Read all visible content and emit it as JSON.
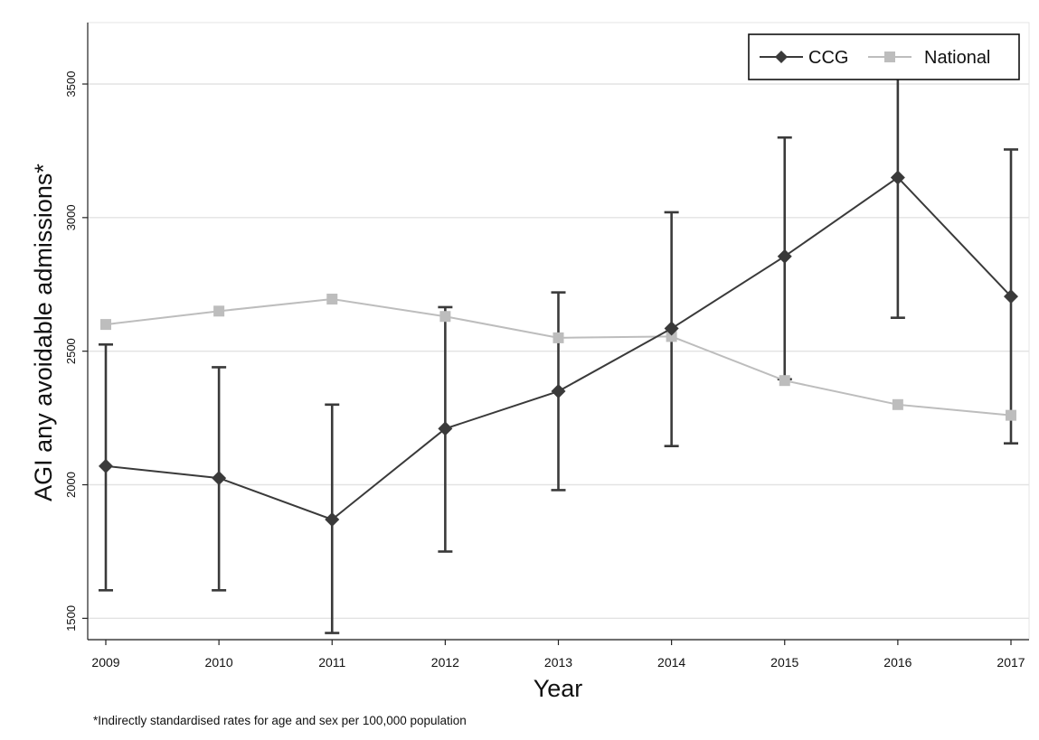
{
  "chart_data": {
    "type": "line",
    "xlabel": "Year",
    "ylabel": "AGI any avoidable admissions*",
    "footnote": "*Indirectly standardised rates for age and sex per 100,000 population",
    "x": [
      "2009",
      "2010",
      "2011",
      "2012",
      "2013",
      "2014",
      "2015",
      "2016",
      "2017"
    ],
    "yticks": [
      1500,
      2000,
      2500,
      3000,
      3500
    ],
    "xlim": [
      2009,
      2017
    ],
    "ylim": [
      1420,
      3730
    ],
    "grid": "horizontal",
    "legend_position": "top-right",
    "series": [
      {
        "name": "CCG",
        "marker": "diamond",
        "color": "#3a3a3a",
        "values": [
          2070,
          2025,
          1870,
          2210,
          2350,
          2585,
          2855,
          3150,
          2705
        ],
        "ci_lower": [
          1605,
          1605,
          1445,
          1750,
          1980,
          2145,
          2395,
          2625,
          2155
        ],
        "ci_upper": [
          2525,
          2440,
          2300,
          2665,
          2720,
          3020,
          3300,
          3520,
          3255
        ]
      },
      {
        "name": "National",
        "marker": "square",
        "color": "#bdbdbd",
        "values": [
          2600,
          2650,
          2695,
          2630,
          2550,
          2555,
          2390,
          2300,
          2260
        ]
      }
    ]
  }
}
